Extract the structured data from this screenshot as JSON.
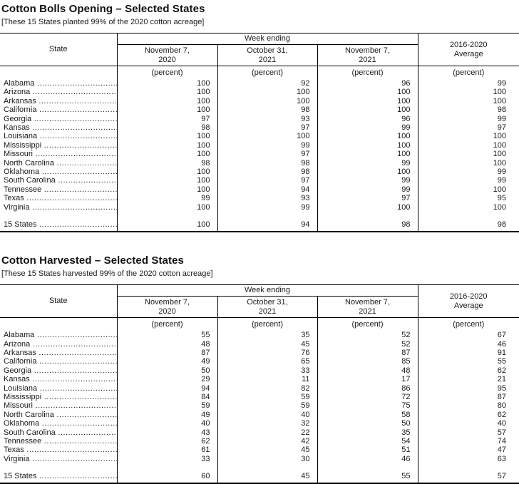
{
  "page": {
    "background": "#ffffff",
    "text_color": "#1a1a1a",
    "border_color": "#000000"
  },
  "tables": [
    {
      "title": "Cotton Bolls Opening – Selected States",
      "subtitle": "[These 15 States planted 99% of the 2020 cotton acreage]",
      "header": {
        "state": "State",
        "week_ending": "Week ending",
        "average": "2016-2020\nAverage",
        "dates": [
          "November 7,\n2020",
          "October 31,\n2021",
          "November 7,\n2021"
        ],
        "unit": "(percent)"
      },
      "rows": [
        {
          "state": "Alabama",
          "values": [
            100,
            92,
            96,
            99
          ]
        },
        {
          "state": "Arizona",
          "values": [
            100,
            100,
            100,
            100
          ]
        },
        {
          "state": "Arkansas",
          "values": [
            100,
            100,
            100,
            100
          ]
        },
        {
          "state": "California",
          "values": [
            100,
            98,
            100,
            98
          ]
        },
        {
          "state": "Georgia",
          "values": [
            97,
            93,
            96,
            99
          ]
        },
        {
          "state": "Kansas",
          "values": [
            98,
            97,
            99,
            97
          ]
        },
        {
          "state": "Louisiana",
          "values": [
            100,
            100,
            100,
            100
          ]
        },
        {
          "state": "Mississippi",
          "values": [
            100,
            99,
            100,
            100
          ]
        },
        {
          "state": "Missouri",
          "values": [
            100,
            97,
            100,
            100
          ]
        },
        {
          "state": "North Carolina",
          "values": [
            98,
            98,
            99,
            100
          ]
        },
        {
          "state": "Oklahoma",
          "values": [
            100,
            98,
            100,
            99
          ]
        },
        {
          "state": "South Carolina",
          "values": [
            100,
            97,
            99,
            99
          ]
        },
        {
          "state": "Tennessee",
          "values": [
            100,
            94,
            99,
            100
          ]
        },
        {
          "state": "Texas",
          "values": [
            99,
            93,
            97,
            95
          ]
        },
        {
          "state": "Virginia",
          "values": [
            100,
            99,
            100,
            100
          ]
        }
      ],
      "total": {
        "state": "15 States",
        "values": [
          100,
          94,
          98,
          98
        ]
      }
    },
    {
      "title": "Cotton Harvested – Selected States",
      "subtitle": "[These 15 States harvested 99% of the 2020 cotton acreage]",
      "header": {
        "state": "State",
        "week_ending": "Week ending",
        "average": "2016-2020\nAverage",
        "dates": [
          "November 7,\n2020",
          "October 31,\n2021",
          "November 7,\n2021"
        ],
        "unit": "(percent)"
      },
      "rows": [
        {
          "state": "Alabama",
          "values": [
            55,
            35,
            52,
            67
          ]
        },
        {
          "state": "Arizona",
          "values": [
            48,
            45,
            52,
            46
          ]
        },
        {
          "state": "Arkansas",
          "values": [
            87,
            76,
            87,
            91
          ]
        },
        {
          "state": "California",
          "values": [
            49,
            65,
            85,
            55
          ]
        },
        {
          "state": "Georgia",
          "values": [
            50,
            33,
            48,
            62
          ]
        },
        {
          "state": "Kansas",
          "values": [
            29,
            11,
            17,
            21
          ]
        },
        {
          "state": "Louisiana",
          "values": [
            94,
            82,
            86,
            95
          ]
        },
        {
          "state": "Mississippi",
          "values": [
            84,
            59,
            72,
            87
          ]
        },
        {
          "state": "Missouri",
          "values": [
            59,
            59,
            75,
            80
          ]
        },
        {
          "state": "North Carolina",
          "values": [
            49,
            40,
            58,
            62
          ]
        },
        {
          "state": "Oklahoma",
          "values": [
            40,
            32,
            50,
            40
          ]
        },
        {
          "state": "South Carolina",
          "values": [
            43,
            22,
            35,
            57
          ]
        },
        {
          "state": "Tennessee",
          "values": [
            62,
            42,
            54,
            74
          ]
        },
        {
          "state": "Texas",
          "values": [
            61,
            45,
            51,
            47
          ]
        },
        {
          "state": "Virginia",
          "values": [
            33,
            30,
            46,
            63
          ]
        }
      ],
      "total": {
        "state": "15 States",
        "values": [
          60,
          45,
          55,
          57
        ]
      }
    }
  ]
}
